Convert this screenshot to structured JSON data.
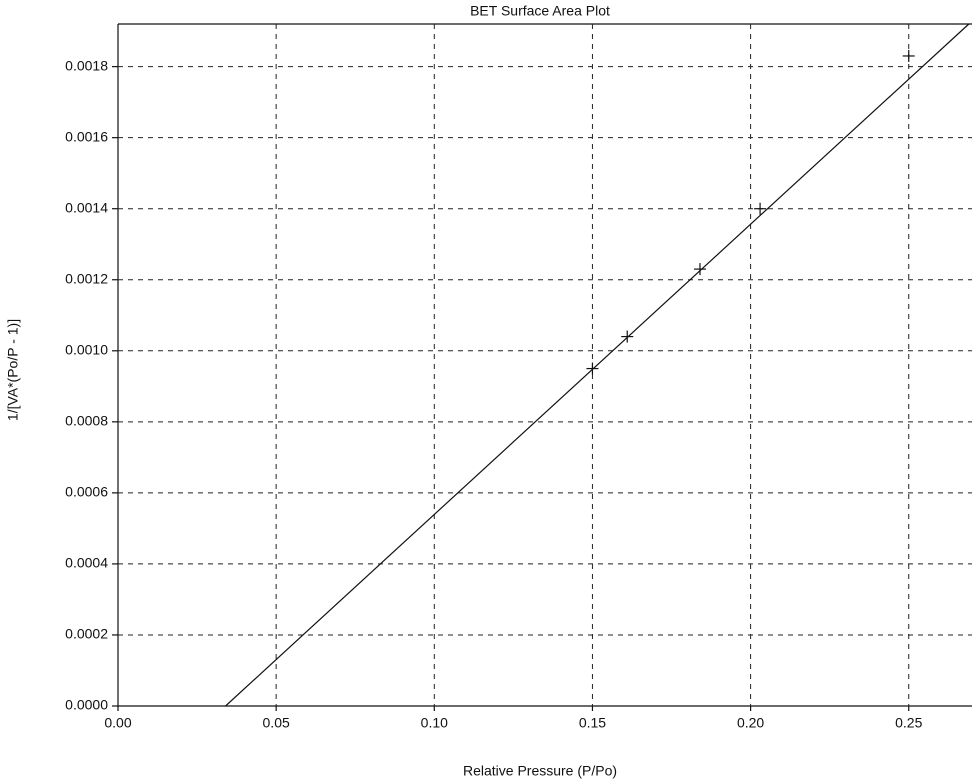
{
  "chart_data": {
    "type": "scatter",
    "title": "BET Surface Area Plot",
    "x_label": "Relative Pressure (P/Po)",
    "y_label": "1/[VA*(Po/P - 1)]",
    "xlim": [
      0,
      0.27
    ],
    "ylim": [
      0,
      0.00192
    ],
    "xticks": [
      {
        "value": 0,
        "label": "0.00"
      },
      0.05,
      {
        "value": 0.1,
        "label": "0.10"
      },
      0.15,
      {
        "value": 0.2,
        "label": "0.20"
      },
      0.25
    ],
    "yticks": [
      {
        "value": 0,
        "label": "0.0000"
      },
      0.0002,
      0.0004,
      0.0006,
      0.0008,
      {
        "value": 0.001,
        "label": "0.0010"
      },
      0.0012,
      0.0014,
      0.0016,
      0.0018
    ],
    "grid": true,
    "series": [
      {
        "type": "scatter",
        "color": "#111111",
        "x": [
          0.15,
          0.161,
          0.184,
          0.203,
          0.25
        ],
        "values": [
          0.00095,
          0.00104,
          0.00123,
          0.0014,
          0.00183
        ]
      },
      {
        "type": "line",
        "color": "#111111",
        "x": [
          0.034,
          0.269
        ],
        "values": [
          0,
          0.00192
        ]
      }
    ]
  }
}
